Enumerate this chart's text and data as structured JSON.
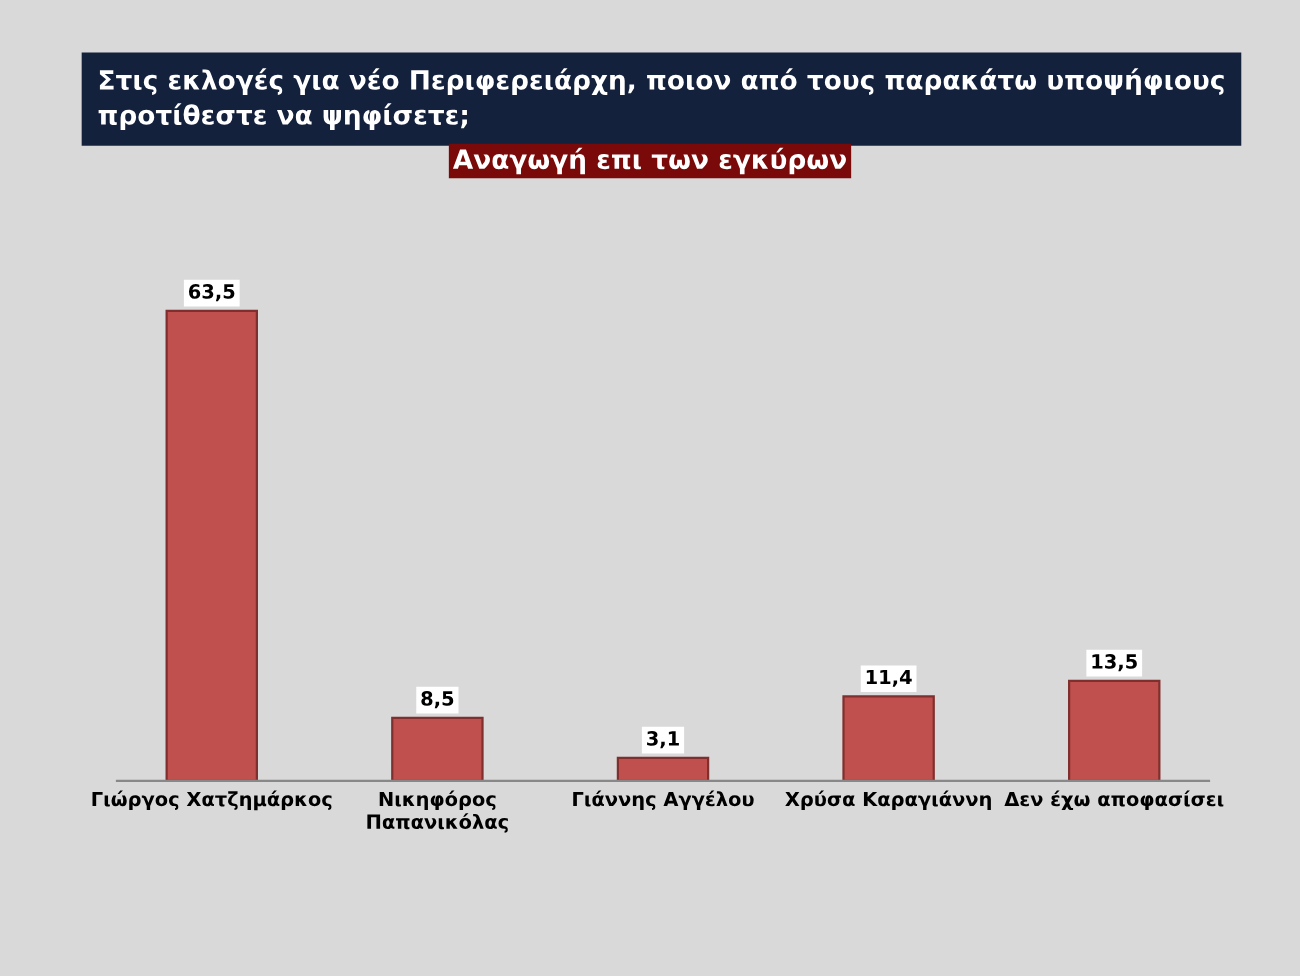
{
  "chart_data": {
    "type": "bar",
    "title": "Στις εκλογές για νέο Περιφερειάρχη, ποιον από τους παρακάτω υποψήφιους\nπροτίθεστε να ψηφίσετε;",
    "subtitle": "Αναγωγή επι των εγκύρων",
    "categories": [
      "Γιώργος Χατζημάρκος",
      "Νικηφόρος\nΠαπανικόλας",
      "Γιάννης Αγγέλου",
      "Χρύσα Καραγιάννη",
      "Δεν έχω αποφασίσει"
    ],
    "values": [
      63.5,
      8.5,
      3.1,
      11.4,
      13.5
    ],
    "value_labels": [
      "63,5",
      "8,5",
      "3,1",
      "11,4",
      "13,5"
    ],
    "color": "#c0504d",
    "tick_labels": "x",
    "grid": false,
    "legend": false
  }
}
